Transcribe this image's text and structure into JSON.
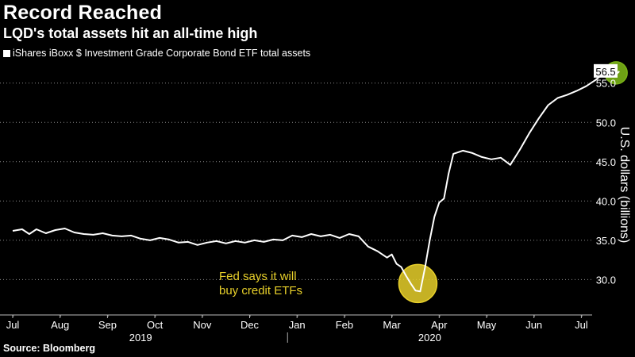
{
  "title": "Record Reached",
  "subtitle": "LQD's total assets hit an all-time high",
  "source": "Source: Bloomberg",
  "colors": {
    "background": "#000000",
    "line": "#ffffff",
    "grid": "#8a8a8a",
    "highlight_yellow": "#e8d02a",
    "highlight_green": "#7ab317"
  },
  "chart_data": {
    "type": "line",
    "title": "Record Reached",
    "subtitle": "LQD's total assets hit an all-time high",
    "ylabel": "U.S. dollars (billions)",
    "xlabel": "",
    "ylim": [
      25.5,
      58.0
    ],
    "y_ticks": [
      30.0,
      35.0,
      40.0,
      45.0,
      50.0,
      55.0
    ],
    "y_tick_labels": [
      "30.0",
      "35.0",
      "40.0",
      "45.0",
      "50.0",
      "55.0"
    ],
    "x_tick_labels": [
      "Jul",
      "Aug",
      "Sep",
      "Oct",
      "Nov",
      "Dec",
      "Jan",
      "Feb",
      "Mar",
      "Apr",
      "May",
      "Jun",
      "Jul"
    ],
    "year_labels": [
      "2019",
      "2020"
    ],
    "grid": true,
    "series": [
      {
        "name": "iShares iBoxx $ Investment Grade Corporate Bond ETF total assets",
        "x_months": [
          0,
          0.2,
          0.35,
          0.5,
          0.7,
          0.9,
          1.1,
          1.3,
          1.5,
          1.7,
          1.9,
          2.1,
          2.3,
          2.5,
          2.7,
          2.9,
          3.1,
          3.3,
          3.5,
          3.7,
          3.9,
          4.1,
          4.3,
          4.5,
          4.7,
          4.9,
          5.1,
          5.3,
          5.5,
          5.7,
          5.9,
          6.1,
          6.3,
          6.5,
          6.7,
          6.9,
          7.1,
          7.3,
          7.5,
          7.7,
          7.9,
          8.0,
          8.1,
          8.2,
          8.3,
          8.4,
          8.5,
          8.6,
          8.7,
          8.8,
          8.9,
          9.0,
          9.1,
          9.2,
          9.3,
          9.5,
          9.7,
          9.9,
          10.1,
          10.3,
          10.5,
          10.7,
          10.9,
          11.1,
          11.3,
          11.5,
          11.7,
          11.9,
          12.1,
          12.3,
          12.5,
          12.7,
          12.75,
          12.8
        ],
        "values": [
          36.2,
          36.4,
          35.8,
          36.4,
          35.9,
          36.3,
          36.5,
          36.0,
          35.8,
          35.7,
          35.9,
          35.6,
          35.5,
          35.6,
          35.2,
          35.0,
          35.3,
          35.1,
          34.7,
          34.8,
          34.4,
          34.7,
          34.9,
          34.6,
          34.9,
          34.7,
          35.0,
          34.8,
          35.1,
          35.0,
          35.6,
          35.4,
          35.8,
          35.5,
          35.7,
          35.3,
          35.8,
          35.5,
          34.2,
          33.6,
          32.8,
          33.2,
          32.0,
          31.6,
          30.5,
          29.5,
          28.6,
          28.5,
          31.5,
          35.0,
          38.0,
          39.8,
          40.3,
          43.5,
          46.0,
          46.4,
          46.1,
          45.6,
          45.3,
          45.5,
          44.6,
          46.5,
          48.6,
          50.5,
          52.2,
          53.1,
          53.5,
          54.0,
          54.6,
          55.4,
          56.4,
          56.5,
          56.2,
          56.5
        ]
      }
    ],
    "last_value_label": "56.5",
    "annotations": [
      {
        "text": "Fed says it will",
        "at_month": 8.5,
        "at_value": 29.5
      },
      {
        "text": "buy credit ETFs",
        "at_month": 8.5,
        "at_value": 29.5
      },
      {
        "text": "",
        "at_month": 12.75,
        "at_value": 56.4
      }
    ]
  }
}
